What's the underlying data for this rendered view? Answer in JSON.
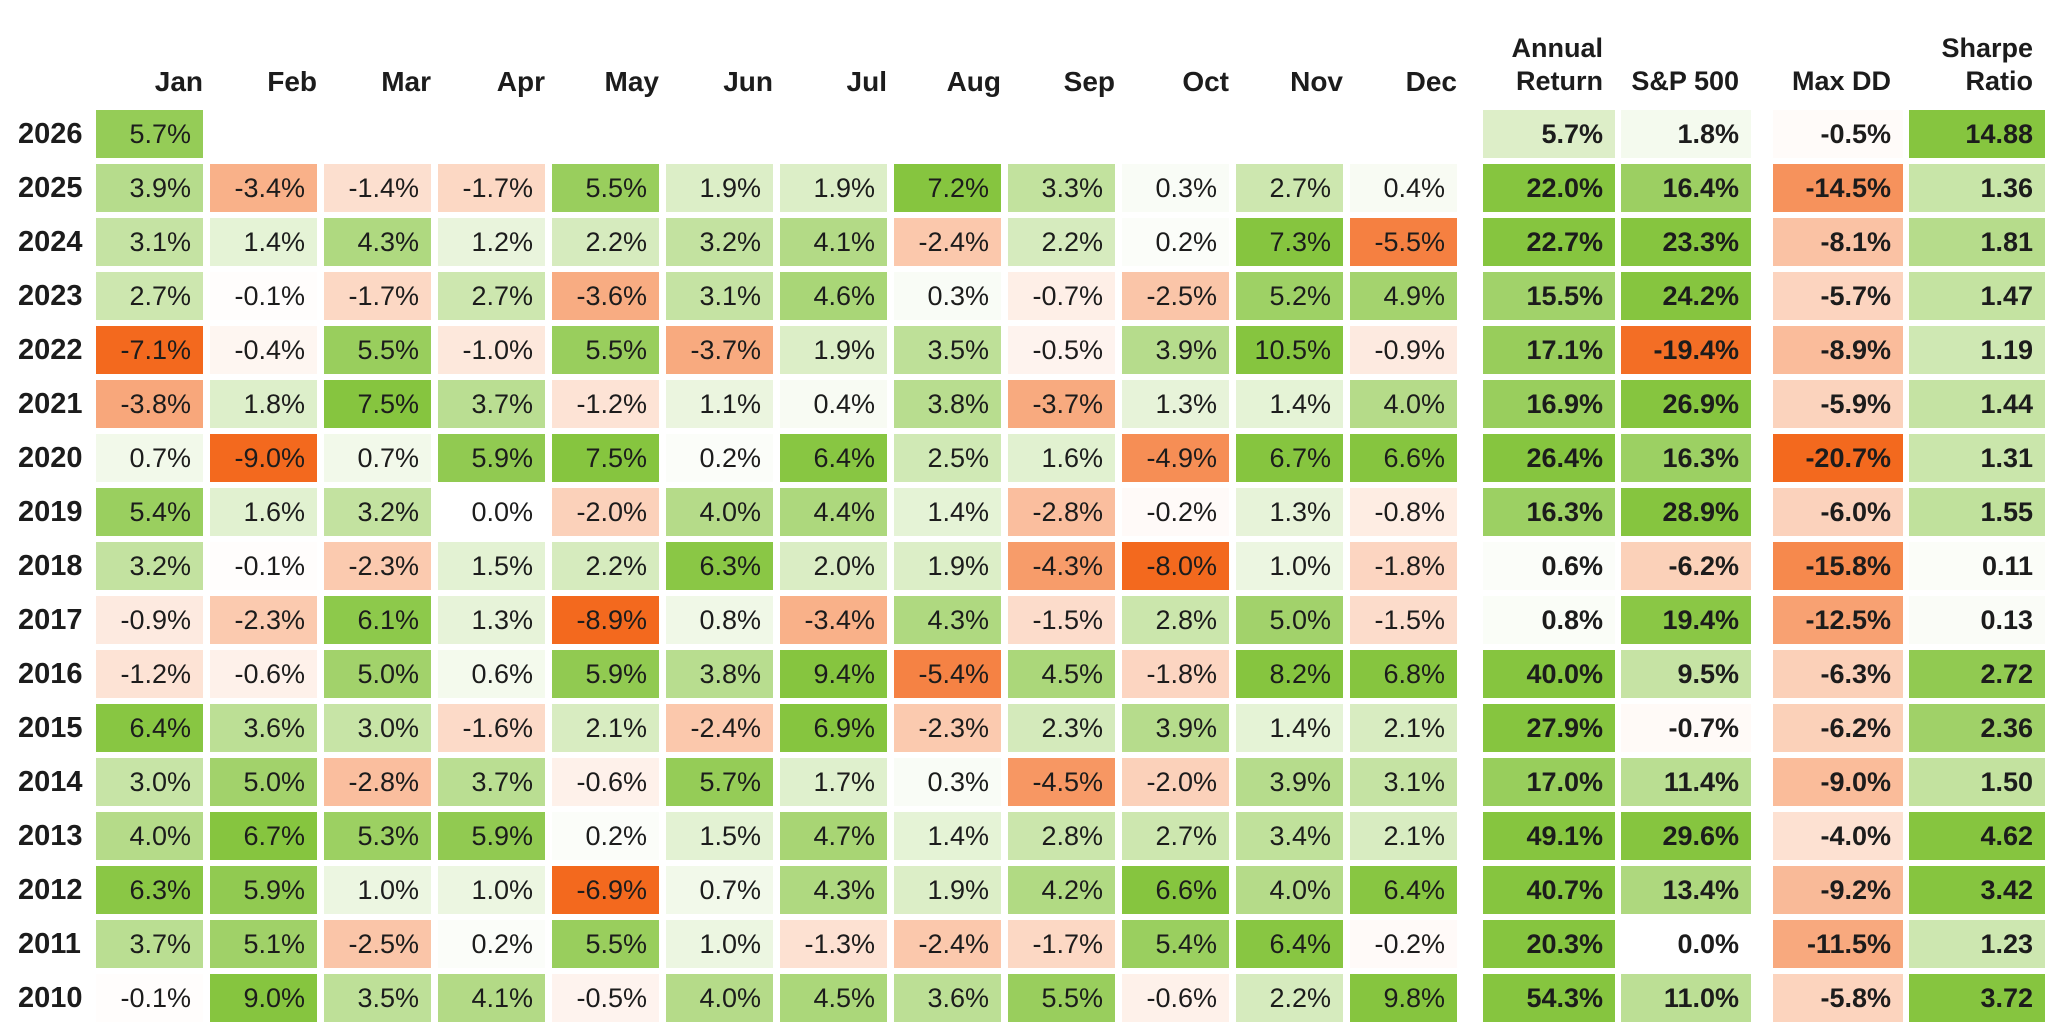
{
  "chart_data": {
    "type": "heatmap",
    "description": "Monthly strategy returns heatmap by year with annual summary columns",
    "month_columns": [
      "Jan",
      "Feb",
      "Mar",
      "Apr",
      "May",
      "Jun",
      "Jul",
      "Aug",
      "Sep",
      "Oct",
      "Nov",
      "Dec"
    ],
    "summary_headers": [
      {
        "key": "annual",
        "lines": "Annual\nReturn"
      },
      {
        "key": "sp500",
        "lines": "S&P 500"
      },
      {
        "key": "max_dd",
        "lines": "Max DD"
      },
      {
        "key": "sharpe",
        "lines": "Sharpe\nRatio"
      }
    ],
    "rows": [
      {
        "year": "2026",
        "monthly": [
          5.7,
          null,
          null,
          null,
          null,
          null,
          null,
          null,
          null,
          null,
          null,
          null
        ],
        "annual": 5.7,
        "sp500": 1.8,
        "max_dd": -0.5,
        "sharpe": 14.88
      },
      {
        "year": "2025",
        "monthly": [
          3.9,
          -3.4,
          -1.4,
          -1.7,
          5.5,
          1.9,
          1.9,
          7.2,
          3.3,
          0.3,
          2.7,
          0.4
        ],
        "annual": 22.0,
        "sp500": 16.4,
        "max_dd": -14.5,
        "sharpe": 1.36
      },
      {
        "year": "2024",
        "monthly": [
          3.1,
          1.4,
          4.3,
          1.2,
          2.2,
          3.2,
          4.1,
          -2.4,
          2.2,
          0.2,
          7.3,
          -5.5
        ],
        "annual": 22.7,
        "sp500": 23.3,
        "max_dd": -8.1,
        "sharpe": 1.81
      },
      {
        "year": "2023",
        "monthly": [
          2.7,
          -0.1,
          -1.7,
          2.7,
          -3.6,
          3.1,
          4.6,
          0.3,
          -0.7,
          -2.5,
          5.2,
          4.9
        ],
        "annual": 15.5,
        "sp500": 24.2,
        "max_dd": -5.7,
        "sharpe": 1.47
      },
      {
        "year": "2022",
        "monthly": [
          -7.1,
          -0.4,
          5.5,
          -1.0,
          5.5,
          -3.7,
          1.9,
          3.5,
          -0.5,
          3.9,
          10.5,
          -0.9
        ],
        "annual": 17.1,
        "sp500": -19.4,
        "max_dd": -8.9,
        "sharpe": 1.19
      },
      {
        "year": "2021",
        "monthly": [
          -3.8,
          1.8,
          7.5,
          3.7,
          -1.2,
          1.1,
          0.4,
          3.8,
          -3.7,
          1.3,
          1.4,
          4.0
        ],
        "annual": 16.9,
        "sp500": 26.9,
        "max_dd": -5.9,
        "sharpe": 1.44
      },
      {
        "year": "2020",
        "monthly": [
          0.7,
          -9.0,
          0.7,
          5.9,
          7.5,
          0.2,
          6.4,
          2.5,
          1.6,
          -4.9,
          6.7,
          6.6
        ],
        "annual": 26.4,
        "sp500": 16.3,
        "max_dd": -20.7,
        "sharpe": 1.31
      },
      {
        "year": "2019",
        "monthly": [
          5.4,
          1.6,
          3.2,
          0.0,
          -2.0,
          4.0,
          4.4,
          1.4,
          -2.8,
          -0.2,
          1.3,
          -0.8
        ],
        "annual": 16.3,
        "sp500": 28.9,
        "max_dd": -6.0,
        "sharpe": 1.55
      },
      {
        "year": "2018",
        "monthly": [
          3.2,
          -0.1,
          -2.3,
          1.5,
          2.2,
          6.3,
          2.0,
          1.9,
          -4.3,
          -8.0,
          1.0,
          -1.8
        ],
        "annual": 0.6,
        "sp500": -6.2,
        "max_dd": -15.8,
        "sharpe": 0.11
      },
      {
        "year": "2017",
        "monthly": [
          -0.9,
          -2.3,
          6.1,
          1.3,
          -8.9,
          0.8,
          -3.4,
          4.3,
          -1.5,
          2.8,
          5.0,
          -1.5
        ],
        "annual": 0.8,
        "sp500": 19.4,
        "max_dd": -12.5,
        "sharpe": 0.13
      },
      {
        "year": "2016",
        "monthly": [
          -1.2,
          -0.6,
          5.0,
          0.6,
          5.9,
          3.8,
          9.4,
          -5.4,
          4.5,
          -1.8,
          8.2,
          6.8
        ],
        "annual": 40.0,
        "sp500": 9.5,
        "max_dd": -6.3,
        "sharpe": 2.72
      },
      {
        "year": "2015",
        "monthly": [
          6.4,
          3.6,
          3.0,
          -1.6,
          2.1,
          -2.4,
          6.9,
          -2.3,
          2.3,
          3.9,
          1.4,
          2.1
        ],
        "annual": 27.9,
        "sp500": -0.7,
        "max_dd": -6.2,
        "sharpe": 2.36
      },
      {
        "year": "2014",
        "monthly": [
          3.0,
          5.0,
          -2.8,
          3.7,
          -0.6,
          5.7,
          1.7,
          0.3,
          -4.5,
          -2.0,
          3.9,
          3.1
        ],
        "annual": 17.0,
        "sp500": 11.4,
        "max_dd": -9.0,
        "sharpe": 1.5
      },
      {
        "year": "2013",
        "monthly": [
          4.0,
          6.7,
          5.3,
          5.9,
          0.2,
          1.5,
          4.7,
          1.4,
          2.8,
          2.7,
          3.4,
          2.1
        ],
        "annual": 49.1,
        "sp500": 29.6,
        "max_dd": -4.0,
        "sharpe": 4.62
      },
      {
        "year": "2012",
        "monthly": [
          6.3,
          5.9,
          1.0,
          1.0,
          -6.9,
          0.7,
          4.3,
          1.9,
          4.2,
          6.6,
          4.0,
          6.4
        ],
        "annual": 40.7,
        "sp500": 13.4,
        "max_dd": -9.2,
        "sharpe": 3.42
      },
      {
        "year": "2011",
        "monthly": [
          3.7,
          5.1,
          -2.5,
          0.2,
          5.5,
          1.0,
          -1.3,
          -2.4,
          -1.7,
          5.4,
          6.4,
          -0.2
        ],
        "annual": 20.3,
        "sp500": 0.0,
        "max_dd": -11.5,
        "sharpe": 1.23
      },
      {
        "year": "2010",
        "monthly": [
          -0.1,
          9.0,
          3.5,
          4.1,
          -0.5,
          4.0,
          4.5,
          3.6,
          5.5,
          -0.6,
          2.2,
          9.8
        ],
        "annual": 54.3,
        "sp500": 11.0,
        "max_dd": -5.8,
        "sharpe": 3.72
      }
    ],
    "colors": {
      "positive_full": "#86c53f",
      "negative_full": "#f3691e",
      "neutral": "#ffffff",
      "text": "#1c1c1c"
    },
    "scales": {
      "monthly_cap": 6.5,
      "annual_cap": 20,
      "sp500_cap": 20,
      "max_dd_cap": 20,
      "sharpe_cap": 3
    },
    "value_formats": {
      "monthly": "percent_1dp",
      "annual": "percent_1dp",
      "sp500": "percent_1dp",
      "max_dd": "percent_1dp",
      "sharpe": "number_2dp"
    },
    "legend_position": "none",
    "grid": false
  }
}
